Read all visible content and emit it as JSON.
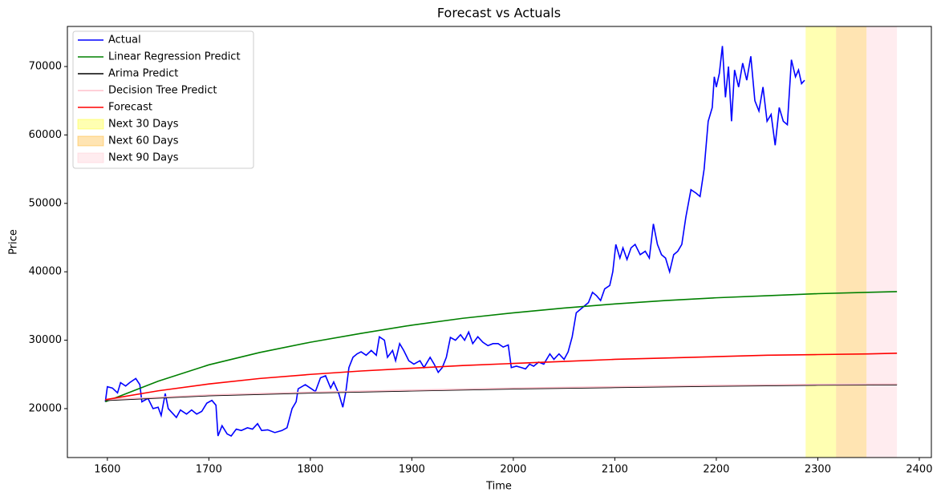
{
  "chart_data": {
    "type": "line",
    "title": "Forecast vs Actuals",
    "xlabel": "Time",
    "ylabel": "Price",
    "xlim": [
      1560.6,
      2411.9
    ],
    "ylim": [
      12850,
      75860
    ],
    "xticks": [
      1600,
      1700,
      1800,
      1900,
      2000,
      2100,
      2200,
      2300,
      2400
    ],
    "yticks": [
      20000,
      30000,
      40000,
      50000,
      60000,
      70000
    ],
    "legend": "upper left",
    "series": [
      {
        "name": "Actual",
        "color": "#0000ff",
        "x": [
          1598,
          1600,
          1605,
          1610,
          1613,
          1618,
          1622,
          1628,
          1632,
          1634,
          1640,
          1645,
          1650,
          1653,
          1657,
          1660,
          1665,
          1668,
          1672,
          1678,
          1683,
          1688,
          1693,
          1698,
          1703,
          1707,
          1709,
          1713,
          1718,
          1722,
          1727,
          1732,
          1738,
          1743,
          1748,
          1752,
          1758,
          1765,
          1772,
          1777,
          1782,
          1786,
          1788,
          1795,
          1800,
          1805,
          1810,
          1815,
          1820,
          1823,
          1828,
          1832,
          1835,
          1838,
          1842,
          1846,
          1850,
          1855,
          1860,
          1865,
          1868,
          1873,
          1876,
          1881,
          1884,
          1888,
          1892,
          1897,
          1902,
          1908,
          1912,
          1918,
          1922,
          1926,
          1930,
          1934,
          1938,
          1943,
          1948,
          1952,
          1956,
          1960,
          1965,
          1970,
          1975,
          1980,
          1985,
          1990,
          1995,
          1998,
          2003,
          2008,
          2012,
          2016,
          2020,
          2025,
          2030,
          2036,
          2040,
          2045,
          2050,
          2054,
          2058,
          2062,
          2066,
          2070,
          2074,
          2078,
          2082,
          2086,
          2090,
          2095,
          2098,
          2101,
          2105,
          2108,
          2112,
          2116,
          2120,
          2125,
          2130,
          2134,
          2138,
          2142,
          2146,
          2150,
          2154,
          2158,
          2162,
          2166,
          2170,
          2175,
          2180,
          2184,
          2188,
          2192,
          2196,
          2198,
          2200,
          2203,
          2206,
          2209,
          2212,
          2215,
          2218,
          2222,
          2226,
          2230,
          2234,
          2238,
          2242,
          2246,
          2250,
          2254,
          2258,
          2262,
          2266,
          2270,
          2274,
          2278,
          2281,
          2284,
          2287
        ],
        "values": [
          21000,
          23200,
          23000,
          22300,
          23800,
          23300,
          23800,
          24400,
          23500,
          21000,
          21500,
          20000,
          20200,
          19000,
          22200,
          20000,
          19200,
          18700,
          19800,
          19200,
          19800,
          19200,
          19600,
          20800,
          21200,
          20500,
          16000,
          17500,
          16300,
          16000,
          17000,
          16800,
          17200,
          17000,
          17800,
          16800,
          16900,
          16500,
          16800,
          17200,
          20000,
          21000,
          22900,
          23500,
          23000,
          22500,
          24500,
          24800,
          23000,
          23900,
          22200,
          20200,
          22500,
          26000,
          27500,
          28000,
          28300,
          27800,
          28500,
          27800,
          30500,
          30000,
          27500,
          28500,
          27000,
          29500,
          28500,
          27000,
          26500,
          27000,
          26000,
          27500,
          26500,
          25300,
          26000,
          27500,
          30400,
          30000,
          30800,
          30000,
          31200,
          29500,
          30500,
          29700,
          29200,
          29500,
          29500,
          29000,
          29300,
          26000,
          26200,
          26000,
          25800,
          26500,
          26200,
          26800,
          26500,
          28000,
          27200,
          28000,
          27200,
          28300,
          30500,
          34000,
          34500,
          35000,
          35500,
          37000,
          36500,
          35800,
          37500,
          38000,
          40000,
          44000,
          42000,
          43500,
          41800,
          43500,
          44000,
          42500,
          43000,
          42000,
          47000,
          44000,
          42500,
          42000,
          40000,
          42500,
          43000,
          44000,
          48000,
          52000,
          51500,
          51000,
          55000,
          62000,
          64000,
          68500,
          67000,
          69000,
          73000,
          65500,
          70000,
          62000,
          69500,
          67000,
          70500,
          68000,
          71500,
          65000,
          63500,
          67000,
          62000,
          63000,
          58500,
          64000,
          62000,
          61500,
          71000,
          68500,
          69500,
          67500,
          68000
        ]
      },
      {
        "name": "Linear Regression Predict",
        "color": "#008000",
        "x": [
          1598,
          1650,
          1700,
          1750,
          1800,
          1850,
          1900,
          1950,
          2000,
          2050,
          2100,
          2150,
          2200,
          2250,
          2300,
          2350,
          2378
        ],
        "values": [
          21000,
          24000,
          26400,
          28200,
          29700,
          31000,
          32200,
          33200,
          34000,
          34700,
          35300,
          35800,
          36200,
          36500,
          36800,
          37000,
          37100
        ]
      },
      {
        "name": "Arima Predict",
        "color": "#000000",
        "x": [
          1598,
          1700,
          1800,
          1900,
          2000,
          2100,
          2200,
          2300,
          2378
        ],
        "values": [
          21200,
          21900,
          22300,
          22600,
          22900,
          23100,
          23300,
          23450,
          23500
        ]
      },
      {
        "name": "Decision Tree Predict",
        "color": "#ffc0cb",
        "x": [
          1598,
          1700,
          1800,
          1900,
          2000,
          2100,
          2200,
          2300,
          2378
        ],
        "values": [
          21300,
          22000,
          22400,
          22700,
          23000,
          23200,
          23400,
          23550,
          23600
        ]
      },
      {
        "name": "Forecast",
        "color": "#ff0000",
        "x": [
          1598,
          1650,
          1700,
          1750,
          1800,
          1850,
          1900,
          1950,
          2000,
          2050,
          2100,
          2150,
          2200,
          2250,
          2300,
          2350,
          2378
        ],
        "values": [
          21300,
          22600,
          23600,
          24400,
          25000,
          25500,
          25900,
          26300,
          26600,
          26900,
          27200,
          27400,
          27600,
          27800,
          27900,
          28000,
          28100
        ]
      }
    ],
    "spans": [
      {
        "name": "Next 30 Days",
        "color": "#ffff00",
        "opacity": 0.3,
        "start": 2288,
        "end": 2318
      },
      {
        "name": "Next 60 Days",
        "color": "#ffa500",
        "opacity": 0.3,
        "start": 2318,
        "end": 2348
      },
      {
        "name": "Next 90 Days",
        "color": "#ffc0cb",
        "opacity": 0.3,
        "start": 2348,
        "end": 2378
      }
    ]
  }
}
